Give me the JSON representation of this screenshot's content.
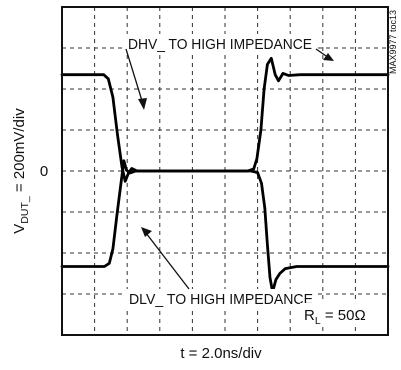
{
  "chart_data": {
    "type": "line",
    "title": "",
    "xlabel": "t = 2.0ns/div",
    "ylabel_main": "V",
    "ylabel_sub": "DUT_",
    "ylabel_rest": " = 200mV/div",
    "y_zero_label": "0",
    "watermark": "MAX9977 toc13",
    "load_label_main": "R",
    "load_label_sub": "L",
    "load_label_rest": " = 50Ω",
    "x_divisions": 10,
    "y_divisions": 8,
    "grid": true,
    "x_units": "divisions (2.0ns/div)",
    "y_units": "divisions (200mV/div)",
    "xlim": [
      0,
      10
    ],
    "ylim": [
      -4,
      4
    ],
    "annotations": [
      {
        "name": "dhv-annotation",
        "text": "DHV_ TO HIGH IMPEDANCE"
      },
      {
        "name": "dlv-annotation",
        "text": "DLV_ TO HIGH IMPEDANCE"
      }
    ],
    "series": [
      {
        "points": [
          [
            0,
            2.35
          ],
          [
            1.28,
            2.35
          ],
          [
            1.42,
            2.25
          ],
          [
            1.56,
            1.8
          ],
          [
            1.7,
            0.9
          ],
          [
            1.84,
            0.1
          ],
          [
            1.94,
            -0.25
          ],
          [
            2.04,
            -0.05
          ],
          [
            2.14,
            0.06
          ],
          [
            2.3,
            0.0
          ],
          [
            2.6,
            0.0
          ],
          [
            5.8,
            0.0
          ],
          [
            6.0,
            -0.04
          ],
          [
            6.12,
            -0.3
          ],
          [
            6.22,
            -0.9
          ],
          [
            6.3,
            -1.8
          ],
          [
            6.38,
            -2.6
          ],
          [
            6.46,
            -2.95
          ],
          [
            6.56,
            -2.65
          ],
          [
            6.68,
            -2.5
          ],
          [
            6.85,
            -2.38
          ],
          [
            7.2,
            -2.33
          ],
          [
            10,
            -2.33
          ]
        ]
      },
      {
        "points": [
          [
            0,
            -2.33
          ],
          [
            1.3,
            -2.33
          ],
          [
            1.45,
            -2.25
          ],
          [
            1.56,
            -1.9
          ],
          [
            1.68,
            -1.1
          ],
          [
            1.8,
            -0.35
          ],
          [
            1.9,
            0.25
          ],
          [
            1.98,
            0.02
          ],
          [
            2.08,
            -0.05
          ],
          [
            2.25,
            0.0
          ],
          [
            2.6,
            0.0
          ],
          [
            5.7,
            0.0
          ],
          [
            5.88,
            0.05
          ],
          [
            5.98,
            0.3
          ],
          [
            6.1,
            1.0
          ],
          [
            6.2,
            2.0
          ],
          [
            6.3,
            2.6
          ],
          [
            6.42,
            2.75
          ],
          [
            6.54,
            2.35
          ],
          [
            6.64,
            2.2
          ],
          [
            6.78,
            2.38
          ],
          [
            6.95,
            2.33
          ],
          [
            7.3,
            2.35
          ],
          [
            10,
            2.35
          ]
        ]
      }
    ]
  }
}
